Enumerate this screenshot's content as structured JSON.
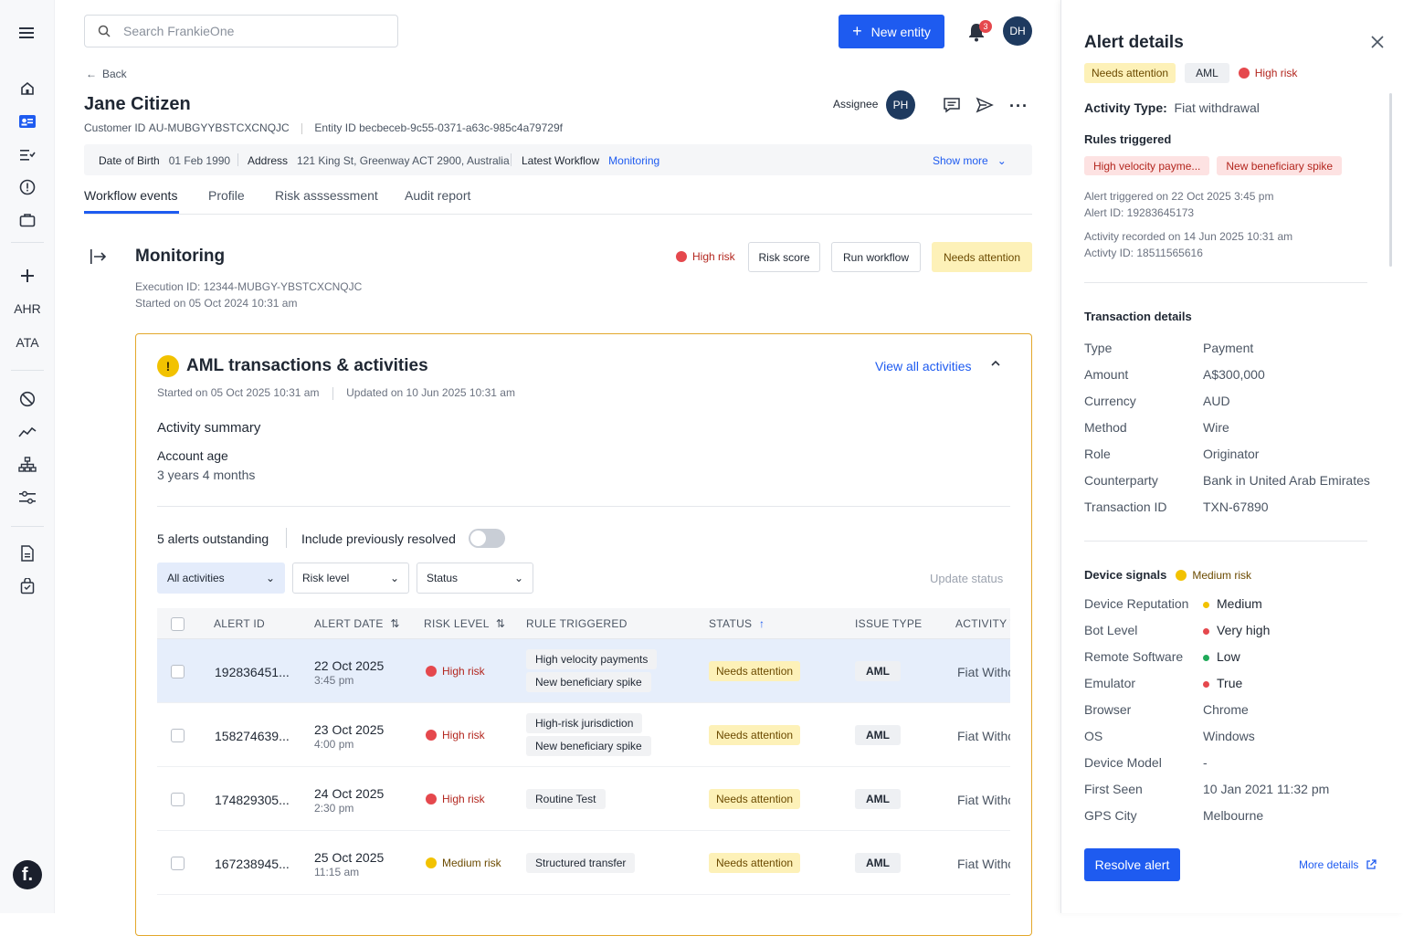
{
  "sidebar": {
    "initials": [
      "AHR",
      "ATA"
    ],
    "logo": "f."
  },
  "header": {
    "search_placeholder": "Search FrankieOne",
    "new_entity_label": "New entity",
    "notification_count": "3",
    "user_initials": "DH"
  },
  "back_label": "Back",
  "entity": {
    "name": "Jane Citizen",
    "customer_id_label": "Customer ID",
    "customer_id": "AU-MUBGYYBSTCXCNQJC",
    "entity_id_label": "Entity ID",
    "entity_id": "becbeceb-9c55-0371-a63c-985c4a79729f",
    "assignee_label": "Assignee",
    "assignee_initials": "PH"
  },
  "info_bar": {
    "dob_label": "Date of Birth",
    "dob": "01 Feb 1990",
    "address_label": "Address",
    "address": "121 King St, Greenway ACT 2900, Australia",
    "workflow_label": "Latest Workflow",
    "workflow": "Monitoring",
    "show_more": "Show more"
  },
  "tabs": [
    "Workflow events",
    "Profile",
    "Risk asssessment",
    "Audit report"
  ],
  "workflow": {
    "title": "Monitoring",
    "risk": "High risk",
    "risk_score_btn": "Risk score",
    "run_workflow_btn": "Run workflow",
    "status": "Needs attention",
    "execution_id": "Execution ID: 12344-MUBGY-YBSTCXCNQJC",
    "started_on": "Started on 05 Oct 2024 10:31 am"
  },
  "aml_card": {
    "title": "AML transactions & activities",
    "view_all": "View all activities",
    "started": "Started on 05 Oct 2025 10:31 am",
    "updated": "Updated on 10 Jun 2025 10:31 am",
    "summary_title": "Activity summary",
    "account_age_label": "Account age",
    "account_age": "3 years 4 months",
    "alerts_outstanding": "5 alerts outstanding",
    "include_resolved": "Include previously resolved",
    "filters": [
      "All activities",
      "Risk level",
      "Status"
    ],
    "update_status": "Update status",
    "columns": [
      "ALERT ID",
      "ALERT DATE",
      "RISK LEVEL",
      "RULE TRIGGERED",
      "STATUS",
      "ISSUE TYPE",
      "ACTIVITY T"
    ],
    "rows": [
      {
        "id": "192836451...",
        "date": "22 Oct 2025",
        "time": "3:45 pm",
        "risk": "High risk",
        "rules": [
          "High velocity payments",
          "New beneficiary spike"
        ],
        "status": "Needs attention",
        "issue": "AML",
        "activity": "Fiat Withc"
      },
      {
        "id": "158274639...",
        "date": "23 Oct 2025",
        "time": "4:00 pm",
        "risk": "High risk",
        "rules": [
          "High-risk jurisdiction",
          "New beneficiary spike"
        ],
        "status": "Needs attention",
        "issue": "AML",
        "activity": "Fiat Withc"
      },
      {
        "id": "174829305...",
        "date": "24 Oct 2025",
        "time": "2:30 pm",
        "risk": "High risk",
        "rules": [
          "Routine Test"
        ],
        "status": "Needs attention",
        "issue": "AML",
        "activity": "Fiat Withc"
      },
      {
        "id": "167238945...",
        "date": "25 Oct 2025",
        "time": "11:15 am",
        "risk": "Medium risk",
        "rules": [
          "Structured transfer"
        ],
        "status": "Needs attention",
        "issue": "AML",
        "activity": "Fiat Withc"
      }
    ]
  },
  "alert_panel": {
    "title": "Alert details",
    "status": "Needs attention",
    "type": "AML",
    "risk": "High risk",
    "activity_type_label": "Activity Type:",
    "activity_type": "Fiat withdrawal",
    "rules_title": "Rules triggered",
    "rules": [
      "High velocity payme...",
      "New beneficiary spike"
    ],
    "alert_triggered": "Alert triggered on 22 Oct 2025  3:45 pm",
    "alert_id": "Alert ID: 19283645173",
    "activity_recorded": "Activity recorded on 14 Jun 2025 10:31 am",
    "activity_id": "Activty ID: 18511565616",
    "transaction_title": "Transaction details",
    "transaction": [
      {
        "k": "Type",
        "v": "Payment"
      },
      {
        "k": "Amount",
        "v": "A$300,000"
      },
      {
        "k": "Currency",
        "v": "AUD"
      },
      {
        "k": "Method",
        "v": "Wire"
      },
      {
        "k": "Role",
        "v": "Originator"
      },
      {
        "k": "Counterparty",
        "v": "Bank in United Arab Emirates"
      },
      {
        "k": "Transaction ID",
        "v": "TXN-67890"
      }
    ],
    "device_title": "Device signals",
    "device_risk": "Medium risk",
    "device": [
      {
        "k": "Device Reputation",
        "v": "Medium",
        "dot": "#f2c200"
      },
      {
        "k": "Bot Level",
        "v": "Very high",
        "dot": "#e5484d"
      },
      {
        "k": "Remote Software",
        "v": "Low",
        "dot": "#1faa59"
      },
      {
        "k": "Emulator",
        "v": "True",
        "dot": "#e5484d"
      },
      {
        "k": "Browser",
        "v": "Chrome",
        "dot": ""
      },
      {
        "k": "OS",
        "v": "Windows",
        "dot": ""
      },
      {
        "k": "Device Model",
        "v": "-",
        "dot": ""
      },
      {
        "k": "First Seen",
        "v": "10 Jan 2021 11:32 pm",
        "dot": ""
      },
      {
        "k": "GPS City",
        "v": "Melbourne",
        "dot": ""
      }
    ],
    "resolve_btn": "Resolve alert",
    "more_details": "More details"
  },
  "colors": {
    "primary": "#1e5bf0",
    "high_risk": "#e5484d",
    "medium_risk": "#f2c200",
    "needs_attention_bg": "#fdf1b8",
    "card_border": "#e3a82b"
  }
}
